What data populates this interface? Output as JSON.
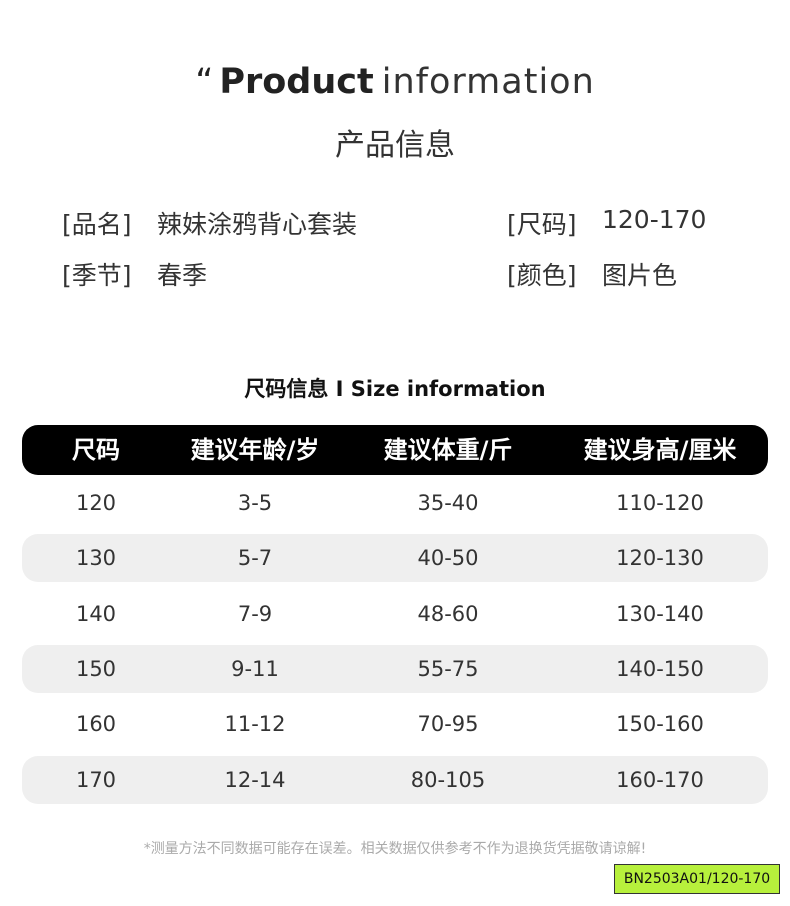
{
  "header": {
    "quote": "“",
    "title_bold": "Product",
    "title_light": "information",
    "subtitle": "产品信息"
  },
  "info": [
    {
      "label": "[品名]",
      "value": "辣妹涂鸦背心套装"
    },
    {
      "label": "[尺码]",
      "value": "120-170"
    },
    {
      "label": "[季节]",
      "value": "春季"
    },
    {
      "label": "[颜色]",
      "value": "图片色"
    }
  ],
  "size_title": "尺码信息 I Size information",
  "table": {
    "headers": [
      "尺码",
      "建议年龄/岁",
      "建议体重/斤",
      "建议身高/厘米"
    ],
    "rows": [
      [
        "120",
        "3-5",
        "35-40",
        "110-120"
      ],
      [
        "130",
        "5-7",
        "40-50",
        "120-130"
      ],
      [
        "140",
        "7-9",
        "48-60",
        "130-140"
      ],
      [
        "150",
        "9-11",
        "55-75",
        "140-150"
      ],
      [
        "160",
        "11-12",
        "70-95",
        "150-160"
      ],
      [
        "170",
        "12-14",
        "80-105",
        "160-170"
      ]
    ]
  },
  "note": "*测量方法不同数据可能存在误差。相关数据仅供参考不作为退换货凭据敬请谅解!",
  "tag": "BN2503A01/120-170"
}
